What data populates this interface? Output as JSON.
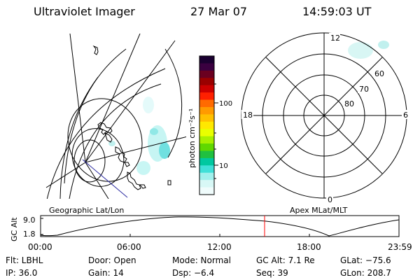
{
  "header": {
    "instrument": "Ultraviolet Imager",
    "date": "27 Mar 07",
    "time": "14:59:03 UT"
  },
  "colorbar": {
    "unit_label": "photon cm⁻²s⁻¹",
    "tick_labels": [
      "100",
      "10"
    ],
    "colors": [
      "#1a0030",
      "#3a0040",
      "#6a0020",
      "#9a0000",
      "#cc0000",
      "#ff2000",
      "#ff6a00",
      "#ff9a00",
      "#ffc000",
      "#ffe800",
      "#e8ff00",
      "#a8f000",
      "#60d800",
      "#20c040",
      "#00c8a0",
      "#40e0d8",
      "#a0f0ec",
      "#d8f8f6",
      "#f0fcfc"
    ]
  },
  "maps": {
    "left_label": "Geographic Lat/Lon",
    "right_label": "Apex MLat/MLT",
    "mlt_labels": {
      "top": "12",
      "left": "18",
      "right": "6",
      "bottom": "0"
    },
    "mlat_labels": [
      "60",
      "70",
      "80"
    ]
  },
  "altitude_plot": {
    "ylabel": "GC Alt",
    "y_ticks": [
      "9.0",
      "1.8"
    ],
    "x_ticks": [
      "00:00",
      "06:00",
      "12:00",
      "18:00",
      "23:59"
    ],
    "current_time_marker": "14:59"
  },
  "footer": {
    "row1": {
      "flt": "Flt: LBHL",
      "door": "Door: Open",
      "mode": "Mode: Normal",
      "gc_alt": "GC Alt: 7.1 Re",
      "glat": "GLat: −75.6"
    },
    "row2": {
      "ip": "IP: 36.0",
      "gain": "Gain: 14",
      "dsp": "Dsp:   −6.4",
      "seq": "Seq: 39",
      "glon": "GLon: 208.7"
    }
  },
  "accent_colors": {
    "marker": "#ff0000",
    "aurora": "#7fe8e8",
    "track": "#2a2aa0"
  }
}
